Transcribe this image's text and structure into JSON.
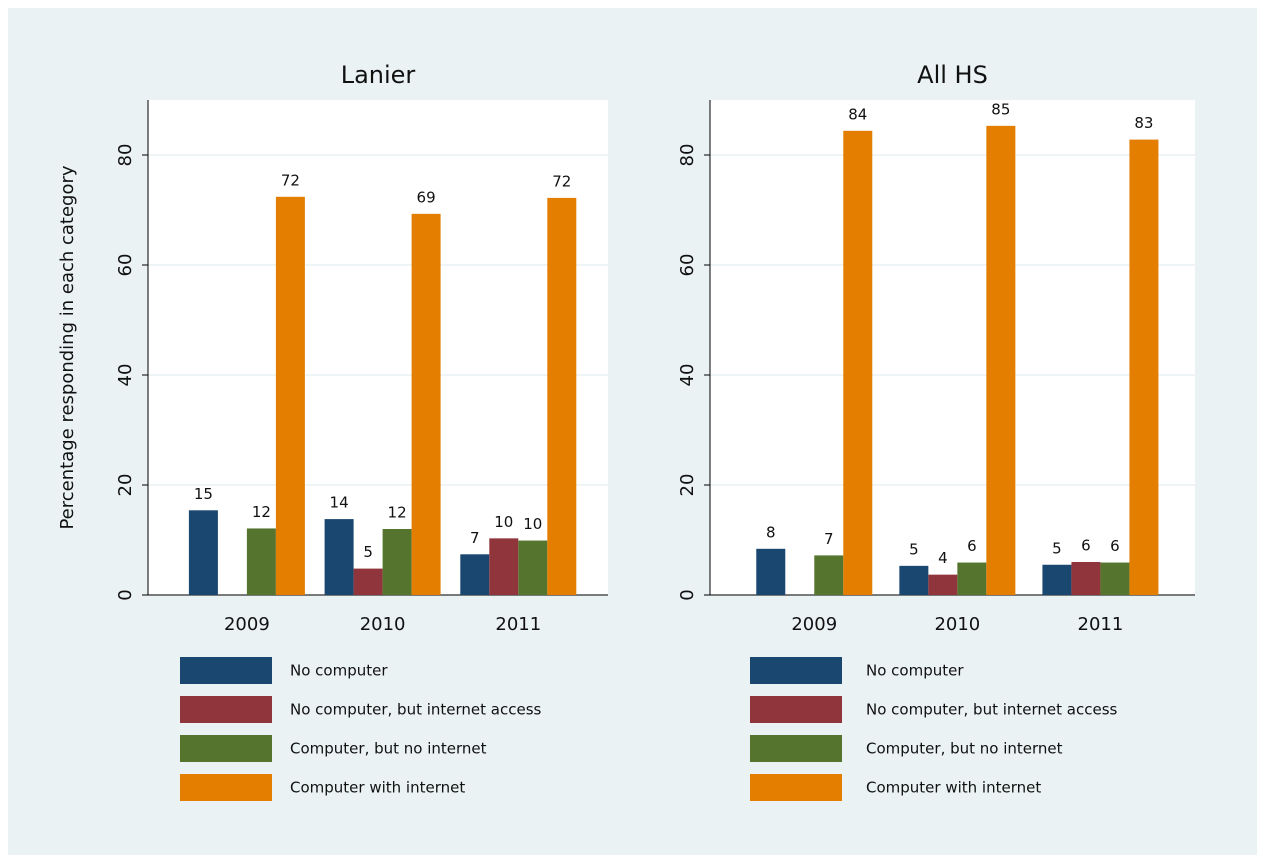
{
  "chart_data": [
    {
      "type": "bar",
      "title": "Lanier",
      "y_label": "Percentage responding in each category",
      "categories": [
        "2009",
        "2010",
        "2011"
      ],
      "series": [
        {
          "name": "No computer",
          "color": "#1a476f",
          "values": [
            15.4,
            13.8,
            7.4
          ],
          "value_labels": [
            "15",
            "14",
            "7"
          ]
        },
        {
          "name": "No computer, but internet access",
          "color": "#90353b",
          "values": [
            null,
            4.8,
            10.3
          ],
          "value_labels": [
            null,
            "5",
            "10"
          ]
        },
        {
          "name": "Computer, but no internet",
          "color": "#55752f",
          "values": [
            12.1,
            12.0,
            9.9
          ],
          "value_labels": [
            "12",
            "12",
            "10"
          ]
        },
        {
          "name": "Computer with internet",
          "color": "#e37e00",
          "values": [
            72.4,
            69.3,
            72.2
          ],
          "value_labels": [
            "72",
            "69",
            "72"
          ]
        }
      ],
      "ylim": [
        0,
        90
      ],
      "yticks": [
        0,
        20,
        40,
        60,
        80
      ],
      "grid": true
    },
    {
      "type": "bar",
      "title": "All HS",
      "categories": [
        "2009",
        "2010",
        "2011"
      ],
      "series": [
        {
          "name": "No computer",
          "color": "#1a476f",
          "values": [
            8.4,
            5.3,
            5.5
          ],
          "value_labels": [
            "8",
            "5",
            "5"
          ]
        },
        {
          "name": "No computer, but internet access",
          "color": "#90353b",
          "values": [
            null,
            3.7,
            6.0
          ],
          "value_labels": [
            null,
            "4",
            "6"
          ]
        },
        {
          "name": "Computer, but no internet",
          "color": "#55752f",
          "values": [
            7.2,
            5.9,
            5.9
          ],
          "value_labels": [
            "7",
            "6",
            "6"
          ]
        },
        {
          "name": "Computer with internet",
          "color": "#e37e00",
          "values": [
            84.4,
            85.3,
            82.8
          ],
          "value_labels": [
            "84",
            "85",
            "83"
          ]
        }
      ],
      "ylim": [
        0,
        90
      ],
      "yticks": [
        0,
        20,
        40,
        60,
        80
      ],
      "grid": true
    }
  ]
}
